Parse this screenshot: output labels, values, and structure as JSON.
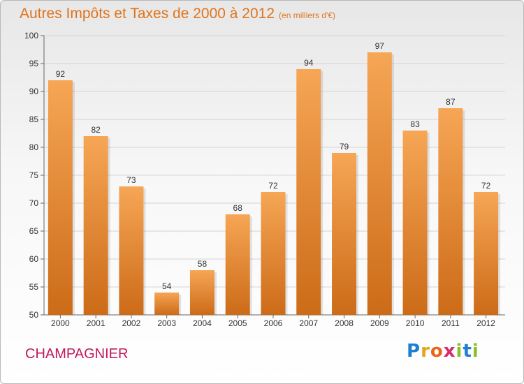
{
  "header": {
    "title": "Autres Impôts et Taxes de 2000 à 2012",
    "unit_note": "(en milliers d'€)"
  },
  "footer": {
    "commune": "CHAMPAGNIER",
    "logo_letters": [
      "P",
      "r",
      "o",
      "x",
      "i",
      "t",
      "i"
    ],
    "logo_colors": [
      "#1e7fd0",
      "#e8a31c",
      "#e8651a",
      "#d62b6c",
      "#8cbf26",
      "#1e7fd0",
      "#8cbf26"
    ]
  },
  "colors": {
    "bar_top": "#f6a655",
    "bar_bottom": "#cc6b18",
    "title": "#e0741a",
    "commune": "#c2185b"
  },
  "chart_data": {
    "type": "bar",
    "categories": [
      "2000",
      "2001",
      "2002",
      "2003",
      "2004",
      "2005",
      "2006",
      "2007",
      "2008",
      "2009",
      "2010",
      "2011",
      "2012"
    ],
    "values": [
      92,
      82,
      73,
      54,
      58,
      68,
      72,
      94,
      79,
      97,
      83,
      87,
      72
    ],
    "title": "Autres Impôts et Taxes de 2000 à 2012",
    "xlabel": "",
    "ylabel": "",
    "ylim": [
      50,
      100
    ],
    "yticks": [
      50,
      55,
      60,
      65,
      70,
      75,
      80,
      85,
      90,
      95,
      100
    ],
    "grid": true
  }
}
